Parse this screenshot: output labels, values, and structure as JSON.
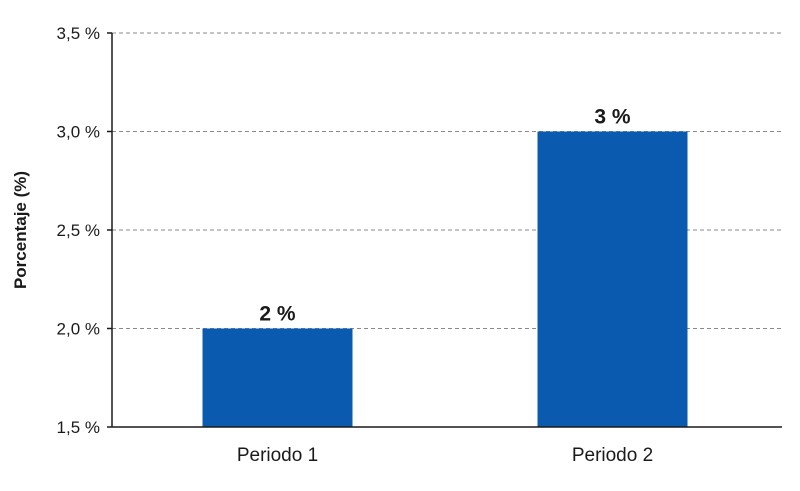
{
  "chart_data": {
    "type": "bar",
    "categories": [
      "Periodo 1",
      "Periodo 2"
    ],
    "values": [
      2.0,
      3.0
    ],
    "data_labels": [
      "2 %",
      "3 %"
    ],
    "ylabel": "Porcentaje (%)",
    "xlabel": "",
    "ylim": [
      1.5,
      3.5
    ],
    "yticks": [
      1.5,
      2.0,
      2.5,
      3.0,
      3.5
    ],
    "ytick_labels": [
      "1,5 %",
      "2,0 %",
      "2,5 %",
      "3,0 %",
      "3,5 %"
    ],
    "grid": true,
    "legend": false,
    "bar_color": "#0a5bb0"
  }
}
